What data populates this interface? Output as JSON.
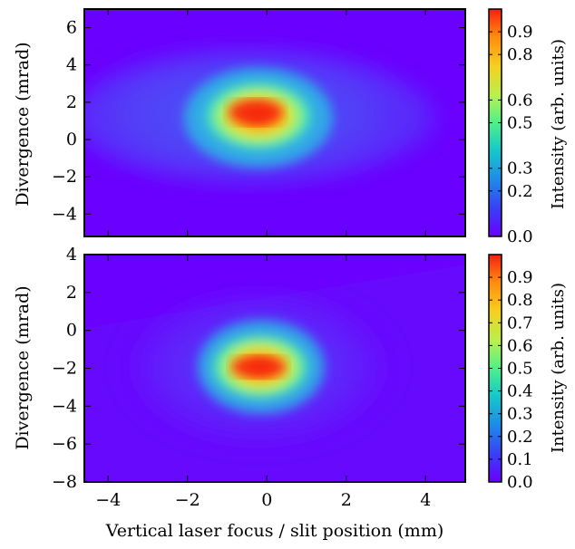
{
  "figure": {
    "xlabel": "Vertical laser focus / slit position (mm)"
  },
  "colors": {
    "colormap": [
      "#6a00ff",
      "#3b3df5",
      "#1f8ae8",
      "#17c8c8",
      "#4ff08a",
      "#b8f050",
      "#f5d020",
      "#ff8a10",
      "#f52010"
    ]
  },
  "chart_data": [
    {
      "type": "heatmap",
      "panel": "top",
      "xlim": [
        -4.6,
        5.0
      ],
      "ylim": [
        -5.2,
        7.0
      ],
      "xticks": [
        "−4",
        "−2",
        "0",
        "2",
        "4"
      ],
      "xtick_values": [
        -4,
        -2,
        0,
        2,
        4
      ],
      "yticks": [
        "6",
        "4",
        "2",
        "0",
        "−2",
        "−4"
      ],
      "ytick_values": [
        6,
        4,
        2,
        0,
        -2,
        -4
      ],
      "ylabel": "Divergence (mrad)",
      "colorbar": {
        "label": "Intensity (arb. units)",
        "ticks": [
          "0.9",
          "0.8",
          "0.6",
          "0.5",
          "0.3",
          "0.2",
          "0.0"
        ],
        "tick_values": [
          0.9,
          0.8,
          0.6,
          0.5,
          0.3,
          0.2,
          0.0
        ],
        "range": [
          0.0,
          1.0
        ]
      },
      "peak": {
        "x": -0.15,
        "y": 1.1,
        "value": 1.0
      }
    },
    {
      "type": "heatmap",
      "panel": "bottom",
      "xlim": [
        -4.6,
        5.0
      ],
      "ylim": [
        -8.0,
        4.0
      ],
      "xticks": [
        "−4",
        "−2",
        "0",
        "2",
        "4"
      ],
      "xtick_values": [
        -4,
        -2,
        0,
        2,
        4
      ],
      "yticks": [
        "4",
        "2",
        "0",
        "−2",
        "−4",
        "−6",
        "−8"
      ],
      "ytick_values": [
        4,
        2,
        0,
        -2,
        -4,
        -6,
        -8
      ],
      "ylabel": "Divergence (mrad)",
      "colorbar": {
        "label": "Intensity (arb. units)",
        "ticks": [
          "0.9",
          "0.8",
          "0.7",
          "0.6",
          "0.5",
          "0.4",
          "0.3",
          "0.2",
          "0.1",
          "0.0"
        ],
        "tick_values": [
          0.9,
          0.8,
          0.7,
          0.6,
          0.5,
          0.4,
          0.3,
          0.2,
          0.1,
          0.0
        ],
        "range": [
          0.0,
          1.0
        ]
      },
      "peak": {
        "x": -0.2,
        "y": -2.2,
        "value": 1.0
      }
    }
  ]
}
